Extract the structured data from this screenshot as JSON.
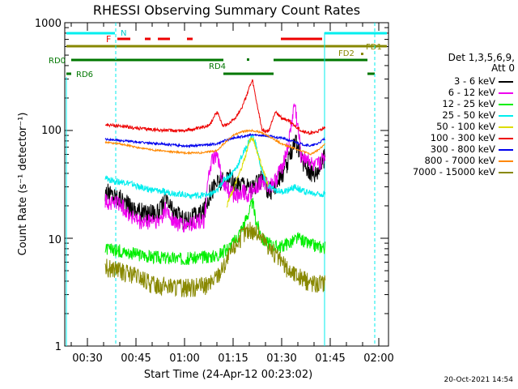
{
  "chart_data": {
    "type": "line",
    "title": "RHESSI Observing Summary Count Rates",
    "xlabel": "Start Time (24-Apr-12 00:23:02)",
    "ylabel": "Count Rate (s⁻¹ detector⁻¹)",
    "yscale": "log",
    "ylim": [
      1,
      1000
    ],
    "y_ticks": [
      "1",
      "10",
      "100",
      "1000"
    ],
    "x_range_minutes": [
      23,
      123
    ],
    "x_ticks": [
      {
        "t": 30,
        "label": "00:30"
      },
      {
        "t": 45,
        "label": "00:45"
      },
      {
        "t": 60,
        "label": "01:00"
      },
      {
        "t": 75,
        "label": "01:15"
      },
      {
        "t": 90,
        "label": "01:30"
      },
      {
        "t": 105,
        "label": "01:45"
      },
      {
        "t": 120,
        "label": "02:00"
      }
    ],
    "legend": {
      "placement": "right",
      "title_line1": "Det 1,3,5,6,9,",
      "title_line2": "Att 0"
    },
    "timestamp": "20-Oct-2021 14:54",
    "bar_labels": {
      "night": "N",
      "flare": "F",
      "fd1": "FD1",
      "fd2": "FD2",
      "rd0": "RD0",
      "rd4": "RD4",
      "rd6": "RD6"
    },
    "series": [
      {
        "name": "3 - 6 keV",
        "color": "#000000",
        "x": [
          35.5,
          40,
          43,
          46,
          48,
          50,
          52,
          54,
          57,
          60,
          63,
          66,
          68,
          70,
          72,
          74,
          76,
          78,
          80,
          82,
          84,
          86,
          88,
          90,
          92,
          94,
          96,
          98,
          100,
          102,
          103.5
        ],
        "y": [
          27,
          24,
          20,
          18,
          17,
          18,
          17,
          23,
          17,
          15,
          16,
          18,
          28,
          33,
          34,
          36,
          30,
          34,
          30,
          31,
          36,
          28,
          31,
          40,
          50,
          85,
          55,
          45,
          40,
          48,
          60
        ]
      },
      {
        "name": "6 - 12 keV",
        "color": "#ee00ee",
        "x": [
          35.5,
          40,
          43,
          46,
          48,
          50,
          52,
          54,
          57,
          60,
          63,
          66,
          68,
          70,
          72,
          74,
          76,
          78,
          80,
          82,
          84,
          86,
          88,
          90,
          92,
          94,
          96,
          98,
          100,
          102,
          103.5
        ],
        "y": [
          22,
          21,
          17,
          14,
          14,
          15,
          14,
          19,
          14,
          13,
          14,
          15,
          50,
          58,
          32,
          27,
          25,
          28,
          26,
          30,
          34,
          30,
          34,
          47,
          70,
          180,
          60,
          55,
          45,
          50,
          60
        ]
      },
      {
        "name": "12 - 25 keV",
        "color": "#00ee00",
        "x": [
          35.5,
          40,
          45,
          50,
          55,
          60,
          65,
          70,
          72,
          74,
          76,
          78,
          80,
          81,
          82,
          84,
          86,
          88,
          90,
          92,
          95,
          98,
          101,
          103.5
        ],
        "y": [
          8,
          7.7,
          7.2,
          6.8,
          6.6,
          6.5,
          6.7,
          7,
          7.5,
          8.5,
          10,
          13,
          18,
          22,
          15,
          10,
          9,
          8.5,
          8.5,
          9,
          10,
          9,
          8.5,
          8.3
        ]
      },
      {
        "name": "25 - 50 keV",
        "color": "#00eeee",
        "x": [
          35.5,
          38,
          42,
          46,
          50,
          54,
          58,
          62,
          66,
          70,
          72,
          74,
          76,
          78,
          80,
          81,
          82,
          84,
          86,
          88,
          90,
          92,
          94,
          96,
          98,
          100,
          103.5
        ],
        "y": [
          36,
          34,
          33,
          30,
          28,
          27,
          26,
          25,
          25,
          27,
          35,
          38,
          45,
          60,
          80,
          90,
          75,
          40,
          30,
          28,
          27,
          28,
          30,
          28,
          27,
          26,
          26
        ]
      },
      {
        "name": "50 - 100 keV",
        "color": "#dddd00",
        "x": [
          73,
          75,
          77,
          79,
          80,
          81,
          82,
          84,
          86
        ],
        "y": [
          20,
          28,
          40,
          60,
          80,
          85,
          70,
          45,
          30
        ]
      },
      {
        "name": "100 - 300 keV",
        "color": "#ee0000",
        "x": [
          35.5,
          40,
          45,
          50,
          55,
          60,
          65,
          68,
          70,
          72,
          74,
          76,
          78,
          80,
          81,
          82,
          84,
          86,
          88,
          90,
          92,
          94,
          96,
          98,
          100,
          102,
          103.5
        ],
        "y": [
          113,
          110,
          105,
          102,
          100,
          100,
          105,
          115,
          150,
          110,
          118,
          135,
          170,
          250,
          290,
          200,
          100,
          98,
          150,
          130,
          125,
          110,
          100,
          95,
          95,
          100,
          110
        ]
      },
      {
        "name": "300 - 800 keV",
        "color": "#0000ee",
        "x": [
          35.5,
          40,
          45,
          50,
          55,
          60,
          65,
          70,
          72,
          75,
          78,
          81,
          84,
          87,
          90,
          93,
          96,
          99,
          101,
          103.5
        ],
        "y": [
          83,
          81,
          78,
          76,
          74,
          72,
          73,
          75,
          80,
          85,
          88,
          91,
          90,
          88,
          85,
          80,
          75,
          72,
          75,
          85
        ]
      },
      {
        "name": "800 - 7000 keV",
        "color": "#ff8800",
        "x": [
          35.5,
          40,
          45,
          50,
          55,
          60,
          65,
          70,
          72,
          75,
          78,
          81,
          84,
          87,
          90,
          93,
          96,
          99,
          101,
          103.5
        ],
        "y": [
          78,
          75,
          70,
          66,
          64,
          62,
          62,
          65,
          75,
          90,
          98,
          100,
          95,
          85,
          75,
          70,
          65,
          60,
          65,
          75
        ]
      },
      {
        "name": "7000 - 15000 keV",
        "color": "#888800",
        "x": [
          35.5,
          40,
          45,
          50,
          55,
          60,
          65,
          68,
          70,
          72,
          74,
          76,
          78,
          80,
          82,
          84,
          86,
          88,
          90,
          92,
          95,
          98,
          101,
          103.5
        ],
        "y": [
          5.5,
          5,
          4.5,
          3.8,
          3.6,
          3.5,
          3.6,
          3.8,
          4.5,
          5.5,
          7,
          9,
          11,
          12,
          11.5,
          10,
          8.5,
          7,
          6,
          5,
          4.5,
          4,
          3.8,
          4
        ]
      }
    ]
  }
}
